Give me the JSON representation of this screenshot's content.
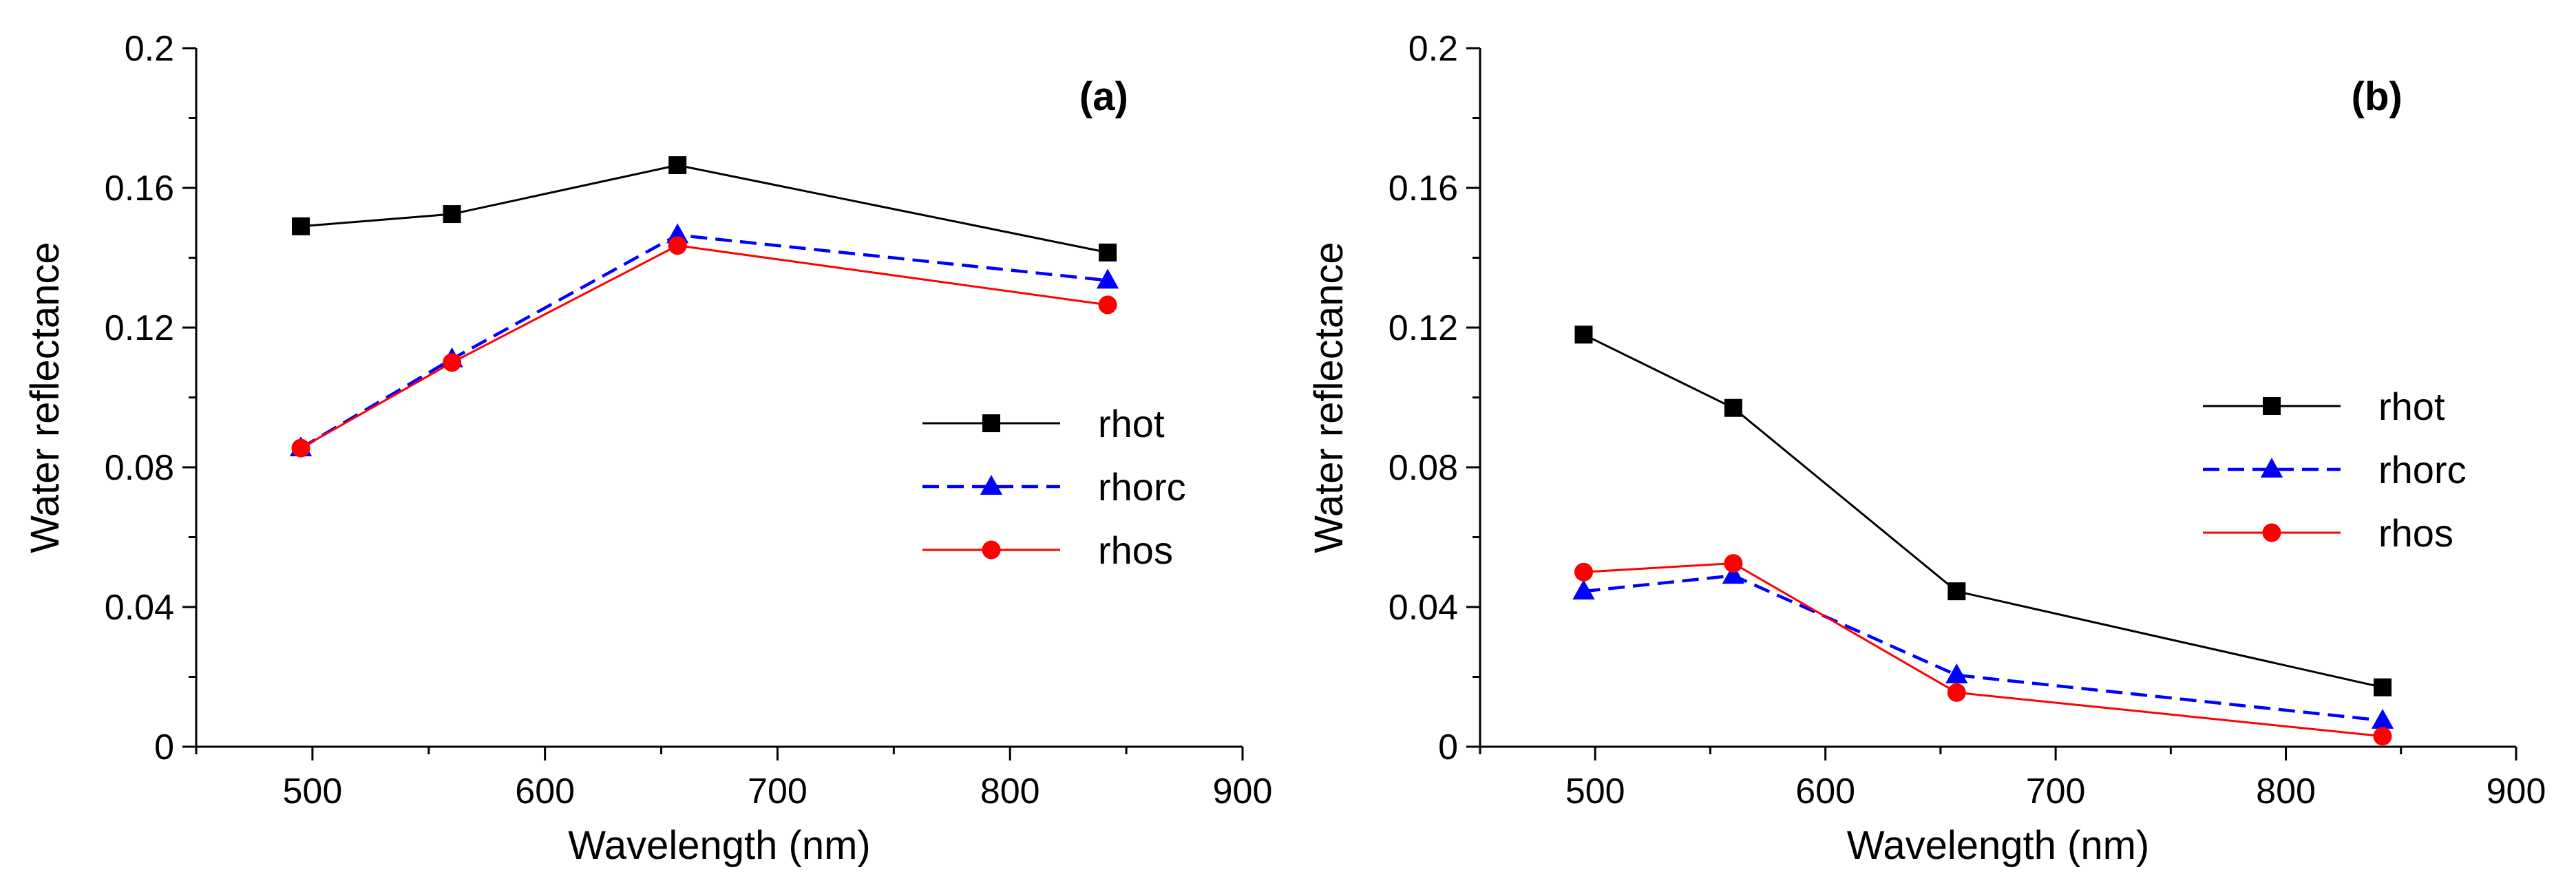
{
  "colors": {
    "rhot": "#000000",
    "rhorc": "#0000ff",
    "rhos": "#ff0000",
    "axis": "#000000"
  },
  "chart_data": [
    {
      "type": "line",
      "panel_label": "(a)",
      "xlabel": "Wavelength (nm)",
      "ylabel": "Water reflectance",
      "xlim": [
        450,
        900
      ],
      "ylim": [
        0,
        0.2
      ],
      "xticks": [
        500,
        600,
        700,
        800,
        900
      ],
      "xtick_labels": [
        "500",
        "600",
        "700",
        "800",
        "900"
      ],
      "yticks": [
        0,
        0.04,
        0.08,
        0.12,
        0.16,
        0.2
      ],
      "ytick_labels": [
        "0",
        "0.04",
        "0.08",
        "0.12",
        "0.16",
        "0.2"
      ],
      "x": [
        495,
        560,
        657,
        842
      ],
      "legend_position": "center-right",
      "grid": false,
      "series": [
        {
          "name": "rhot",
          "values": [
            0.149,
            0.1525,
            0.1665,
            0.1415
          ],
          "line": "solid",
          "marker": "square",
          "color_key": "rhot"
        },
        {
          "name": "rhorc",
          "values": [
            0.0855,
            0.111,
            0.1465,
            0.1335
          ],
          "line": "dashed",
          "marker": "triangle",
          "color_key": "rhorc"
        },
        {
          "name": "rhos",
          "values": [
            0.0855,
            0.11,
            0.1435,
            0.1265
          ],
          "line": "solid",
          "marker": "circle",
          "color_key": "rhos"
        }
      ]
    },
    {
      "type": "line",
      "panel_label": "(b)",
      "xlabel": "Wavelength (nm)",
      "ylabel": "Water reflectance",
      "xlim": [
        450,
        900
      ],
      "ylim": [
        0,
        0.2
      ],
      "xticks": [
        500,
        600,
        700,
        800,
        900
      ],
      "xtick_labels": [
        "500",
        "600",
        "700",
        "800",
        "900"
      ],
      "yticks": [
        0,
        0.04,
        0.08,
        0.12,
        0.16,
        0.2
      ],
      "ytick_labels": [
        "0",
        "0.04",
        "0.08",
        "0.12",
        "0.16",
        "0.2"
      ],
      "x": [
        495,
        560,
        657,
        842
      ],
      "legend_position": "center-right",
      "grid": false,
      "series": [
        {
          "name": "rhot",
          "values": [
            0.118,
            0.097,
            0.0445,
            0.017
          ],
          "line": "solid",
          "marker": "square",
          "color_key": "rhot"
        },
        {
          "name": "rhorc",
          "values": [
            0.0445,
            0.049,
            0.0205,
            0.0075
          ],
          "line": "dashed",
          "marker": "triangle",
          "color_key": "rhorc"
        },
        {
          "name": "rhos",
          "values": [
            0.05,
            0.0525,
            0.0155,
            0.003
          ],
          "line": "solid",
          "marker": "circle",
          "color_key": "rhos"
        }
      ]
    }
  ]
}
